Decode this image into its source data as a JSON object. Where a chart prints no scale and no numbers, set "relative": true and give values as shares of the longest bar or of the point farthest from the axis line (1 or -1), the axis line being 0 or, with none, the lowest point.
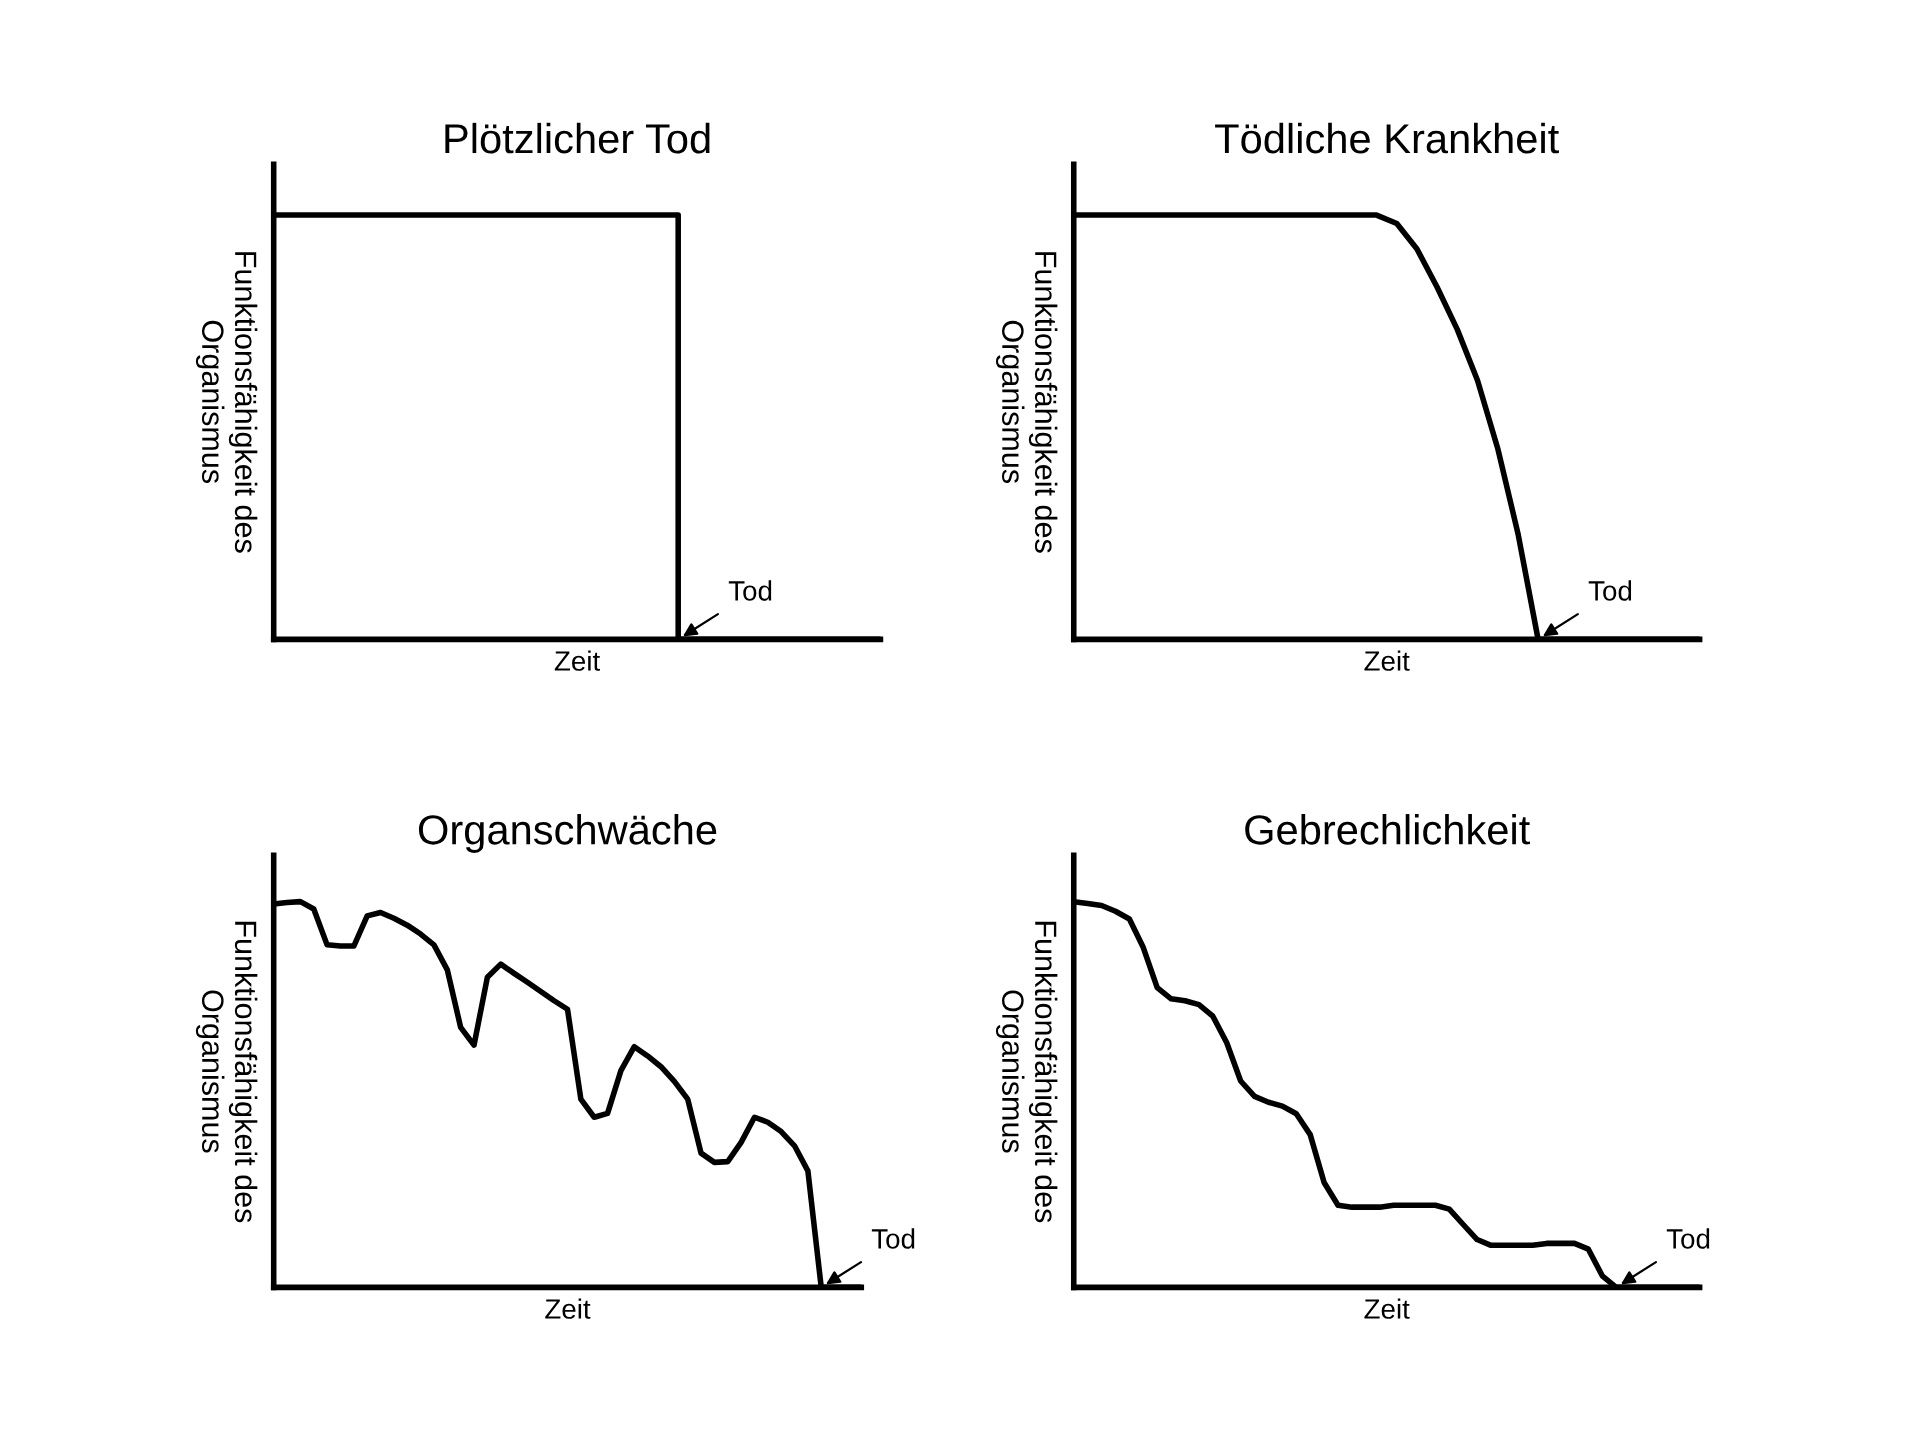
{
  "chart_data": [
    {
      "type": "step",
      "title": "Plötzlicher Tod",
      "xlabel": "Zeit",
      "ylabel": "Funktionsfähigkeit des\nOrganismus",
      "relative": true,
      "tick_labels": false,
      "annotations": [
        "Tod"
      ],
      "categories": [
        null,
        null,
        null,
        null,
        null,
        null,
        null,
        null,
        null,
        null,
        null,
        null,
        null,
        null,
        null,
        null,
        null,
        null,
        null,
        null,
        null,
        null,
        null,
        null,
        null,
        null,
        null,
        null,
        null,
        null,
        null
      ],
      "series": [
        {
          "color": "#000000",
          "values": [
            1,
            1,
            1,
            1,
            1,
            1,
            1,
            1,
            1,
            1,
            1,
            1,
            1,
            1,
            1,
            1,
            1,
            1,
            1,
            1,
            0,
            0,
            0,
            0,
            0,
            0,
            0,
            0,
            0,
            0,
            0
          ]
        }
      ]
    },
    {
      "type": "line",
      "title": "Tödliche Krankheit",
      "xlabel": "Zeit",
      "ylabel": "Funktionsfähigkeit des\nOrganismus",
      "relative": true,
      "tick_labels": false,
      "annotations": [
        "Tod"
      ],
      "categories": [
        null,
        null,
        null,
        null,
        null,
        null,
        null,
        null,
        null,
        null,
        null,
        null,
        null,
        null,
        null,
        null,
        null,
        null,
        null,
        null,
        null,
        null,
        null,
        null,
        null,
        null,
        null,
        null,
        null,
        null,
        null,
        null
      ],
      "series": [
        {
          "color": "#000000",
          "values": [
            1,
            1,
            1,
            1,
            1,
            1,
            1,
            1,
            1,
            1,
            1,
            1,
            1,
            1,
            1,
            1,
            0.98,
            0.92,
            0.83,
            0.73,
            0.61,
            0.45,
            0.25,
            0,
            0,
            0,
            0,
            0,
            0,
            0,
            0,
            0
          ]
        }
      ]
    },
    {
      "type": "line",
      "title": "Organschwäche",
      "xlabel": "Zeit",
      "ylabel": "Funktionsfähigkeit des\nOrganismus",
      "relative": true,
      "tick_labels": false,
      "annotations": [
        "Tod"
      ],
      "categories": [
        null,
        null,
        null,
        null,
        null,
        null,
        null,
        null,
        null,
        null,
        null,
        null,
        null,
        null,
        null,
        null,
        null,
        null,
        null,
        null,
        null,
        null,
        null,
        null,
        null,
        null,
        null,
        null,
        null,
        null,
        null,
        null,
        null,
        null,
        null,
        null,
        null,
        null,
        null,
        null,
        null,
        null,
        null,
        null,
        null
      ],
      "series": [
        {
          "color": "#000000",
          "values": [
            0.994,
            0.998,
            1,
            0.981,
            0.888,
            0.885,
            0.885,
            0.963,
            0.972,
            0.957,
            0.939,
            0.916,
            0.888,
            0.823,
            0.674,
            0.628,
            0.804,
            0.838,
            0.814,
            0.791,
            0.767,
            0.743,
            0.721,
            0.488,
            0.441,
            0.451,
            0.562,
            0.624,
            0.6,
            0.572,
            0.534,
            0.488,
            0.348,
            0.324,
            0.326,
            0.376,
            0.441,
            0.428,
            0.404,
            0.367,
            0.302,
            0,
            0,
            0,
            0
          ]
        }
      ]
    },
    {
      "type": "line",
      "title": "Gebrechlichkeit",
      "xlabel": "Zeit",
      "ylabel": "Funktionsfähigkeit des\nOrganismus",
      "relative": true,
      "tick_labels": false,
      "annotations": [
        "Tod"
      ],
      "categories": [
        null,
        null,
        null,
        null,
        null,
        null,
        null,
        null,
        null,
        null,
        null,
        null,
        null,
        null,
        null,
        null,
        null,
        null,
        null,
        null,
        null,
        null,
        null,
        null,
        null,
        null,
        null,
        null,
        null,
        null,
        null,
        null,
        null,
        null,
        null,
        null,
        null,
        null,
        null,
        null,
        null,
        null,
        null,
        null,
        null,
        null
      ],
      "series": [
        {
          "color": "#000000",
          "values": [
            1,
            0.995,
            0.99,
            0.975,
            0.955,
            0.881,
            0.777,
            0.748,
            0.743,
            0.733,
            0.703,
            0.634,
            0.535,
            0.495,
            0.48,
            0.47,
            0.45,
            0.396,
            0.272,
            0.213,
            0.208,
            0.208,
            0.208,
            0.213,
            0.213,
            0.213,
            0.213,
            0.203,
            0.163,
            0.124,
            0.109,
            0.109,
            0.109,
            0.109,
            0.114,
            0.114,
            0.114,
            0.099,
            0.03,
            0,
            0,
            0,
            0,
            0,
            0,
            0
          ]
        }
      ]
    }
  ]
}
